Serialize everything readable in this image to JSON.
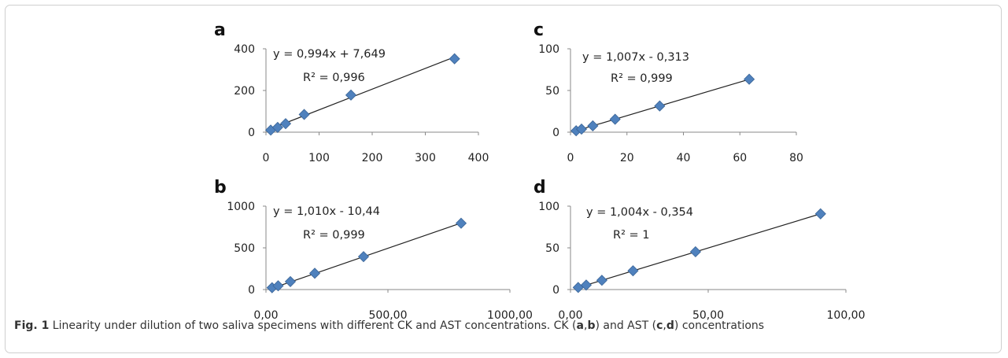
{
  "figure": {
    "caption_label": "Fig. 1",
    "caption_text_1": " Linearity under dilution of two saliva specimens with different CK and AST concentrations. CK (",
    "caption_b1": "a",
    "caption_comma1": ",",
    "caption_b2": "b",
    "caption_text_2": ") and AST (",
    "caption_b3": "c",
    "caption_comma2": ",",
    "caption_b4": "d",
    "caption_text_3": ") concentrations"
  },
  "colors": {
    "marker": "#4f81bd",
    "marker_stroke": "#3a6496",
    "line": "#222222"
  },
  "chart_data": [
    {
      "id": "a",
      "type": "scatter",
      "panel_label": "a",
      "equation": "y = 0,994x + 7,649",
      "r2": "R² = 0,996",
      "x": [
        9,
        22,
        37,
        72,
        160,
        355
      ],
      "y": [
        10,
        23,
        41,
        85,
        178,
        352
      ],
      "xlim": [
        0,
        400
      ],
      "ylim": [
        0,
        400
      ],
      "xticks": [
        "0",
        "100",
        "200",
        "300",
        "400"
      ],
      "xtick_values": [
        0,
        100,
        200,
        300,
        400
      ],
      "yticks": [
        "0",
        "200",
        "400"
      ],
      "ytick_values": [
        0,
        200,
        400
      ],
      "trendline": {
        "slope": 0.994,
        "intercept": 7.649
      }
    },
    {
      "id": "b",
      "type": "scatter",
      "panel_label": "b",
      "equation": "y = 1,010x - 10,44",
      "r2": "R² = 0,999",
      "x": [
        25,
        50,
        100,
        200,
        400,
        800
      ],
      "y": [
        22,
        45,
        95,
        195,
        395,
        795
      ],
      "xlim": [
        0,
        1000
      ],
      "ylim": [
        0,
        1000
      ],
      "xticks": [
        "0,00",
        "500,00",
        "1000,00"
      ],
      "xtick_values": [
        0,
        500,
        1000
      ],
      "yticks": [
        "0",
        "500",
        "1000"
      ],
      "ytick_values": [
        0,
        500,
        1000
      ],
      "trendline": {
        "slope": 1.01,
        "intercept": -10.44
      }
    },
    {
      "id": "c",
      "type": "scatter",
      "panel_label": "c",
      "equation": "y = 1,007x - 0,313",
      "r2": "R² = 0,999",
      "x": [
        2,
        3.9,
        7.9,
        15.8,
        31.6,
        63.3
      ],
      "y": [
        1.7,
        3.7,
        7.6,
        15.5,
        31.4,
        63.5
      ],
      "xlim": [
        0,
        80
      ],
      "ylim": [
        0,
        100
      ],
      "xticks": [
        "0",
        "20",
        "40",
        "60",
        "80"
      ],
      "xtick_values": [
        0,
        20,
        40,
        60,
        80
      ],
      "yticks": [
        "0",
        "50",
        "100"
      ],
      "ytick_values": [
        0,
        50,
        100
      ],
      "trendline": {
        "slope": 1.007,
        "intercept": -0.313
      }
    },
    {
      "id": "d",
      "type": "scatter",
      "panel_label": "d",
      "equation": "y = 1,004x - 0,354",
      "r2": "R² = 1",
      "x": [
        2.8,
        5.7,
        11.4,
        22.7,
        45.4,
        90.8
      ],
      "y": [
        2.5,
        5.4,
        11.1,
        22.5,
        45.3,
        90.8
      ],
      "xlim": [
        0,
        100
      ],
      "ylim": [
        0,
        100
      ],
      "xticks": [
        "0,00",
        "50,00",
        "100,00"
      ],
      "xtick_values": [
        0,
        50,
        100
      ],
      "yticks": [
        "0",
        "50",
        "100"
      ],
      "ytick_values": [
        0,
        50,
        100
      ],
      "trendline": {
        "slope": 1.004,
        "intercept": -0.354
      }
    }
  ]
}
